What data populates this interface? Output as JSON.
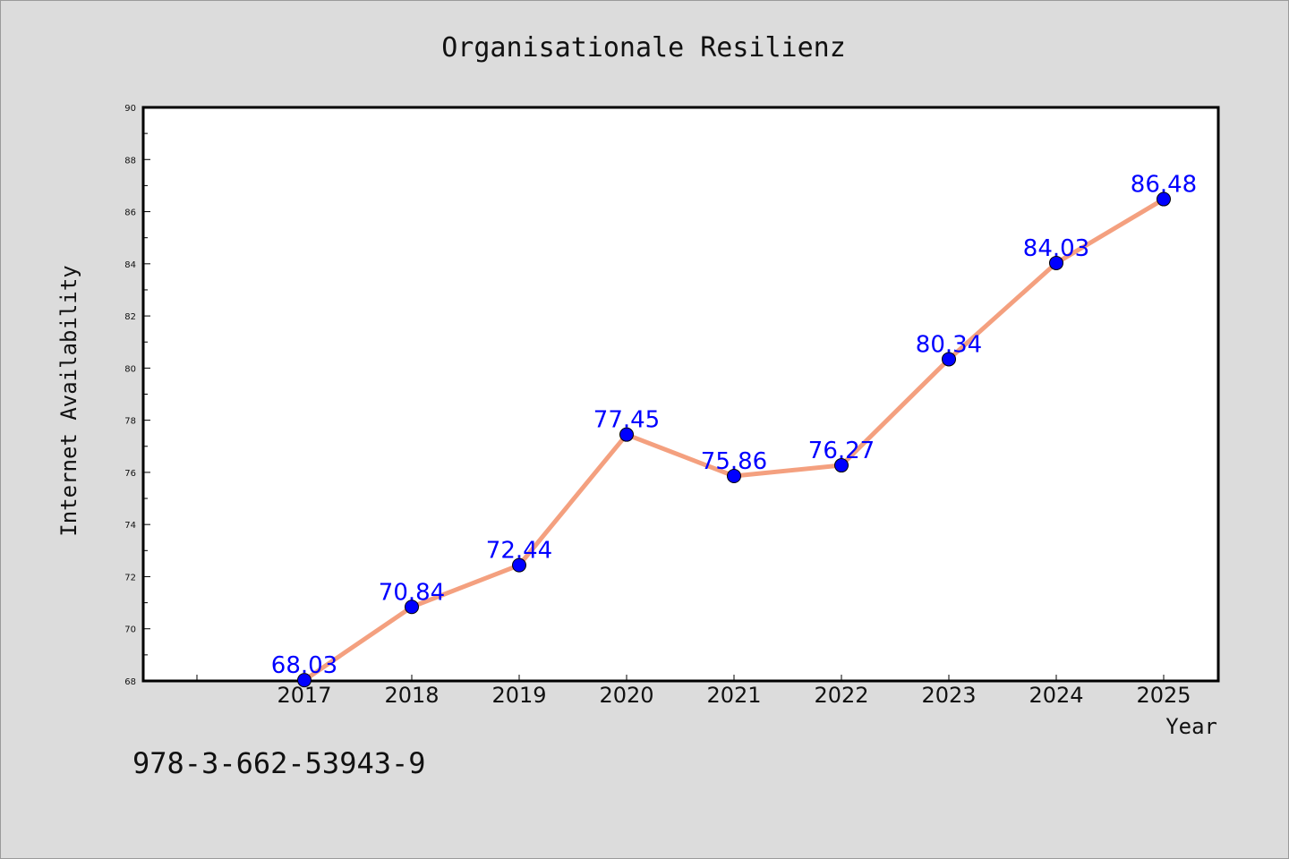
{
  "chart_data": {
    "type": "line",
    "title": "Organisationale Resilienz",
    "xlabel": "Year",
    "ylabel": "Internet Availability",
    "categories": [
      "2017",
      "2018",
      "2019",
      "2020",
      "2021",
      "2022",
      "2023",
      "2024",
      "2025"
    ],
    "series": [
      {
        "values": [
          68.03,
          70.84,
          72.44,
          77.45,
          75.86,
          76.27,
          80.34,
          84.03,
          86.48
        ],
        "labels": [
          "68.03",
          "70.84",
          "72.44",
          "77.45",
          "75.86",
          "76.27",
          "80.34",
          "84.03",
          "86.48"
        ],
        "line_color": "#f4a07f",
        "marker_color": "#0000ff"
      }
    ],
    "ylim": [
      68,
      90
    ],
    "yticks": [
      "68",
      "70",
      "72",
      "74",
      "76",
      "78",
      "80",
      "82",
      "84",
      "86",
      "88",
      "90"
    ],
    "grid": false,
    "legend": "none"
  },
  "footnote": "978-3-662-53943-9",
  "colors": {
    "background": "#dcdcdc",
    "plot_background": "#ffffff",
    "line": "#f4a07f",
    "marker": "#0000ff",
    "data_label": "#0000ff"
  }
}
